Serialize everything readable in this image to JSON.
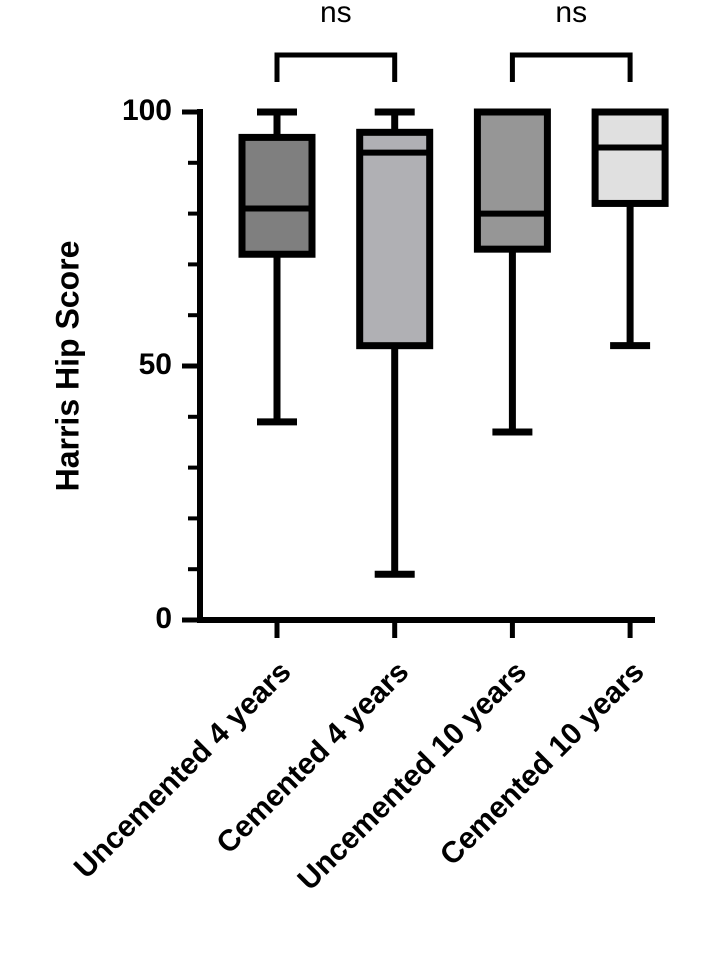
{
  "chart_data": {
    "type": "box",
    "y_label": "Harris Hip Score",
    "categories": [
      "Uncemented 4 years",
      "Cemented 4 years",
      "Uncemented 10 years",
      "Cemented 10 years"
    ],
    "min": [
      39,
      9,
      37,
      54
    ],
    "q1": [
      72,
      54,
      73,
      82
    ],
    "median": [
      81,
      92,
      80,
      93
    ],
    "q3": [
      95,
      96,
      100,
      100
    ],
    "max": [
      100,
      100,
      100,
      100
    ],
    "colors": [
      "#7f7f7f",
      "#b0b0b4",
      "#969696",
      "#e0e0e0"
    ],
    "ylim": [
      0,
      100
    ],
    "yticks": [
      0,
      50,
      100
    ],
    "yminor_ticks": [
      10,
      20,
      30,
      40,
      60,
      70,
      80,
      90
    ],
    "annotations": [
      "ns",
      "ns"
    ]
  }
}
